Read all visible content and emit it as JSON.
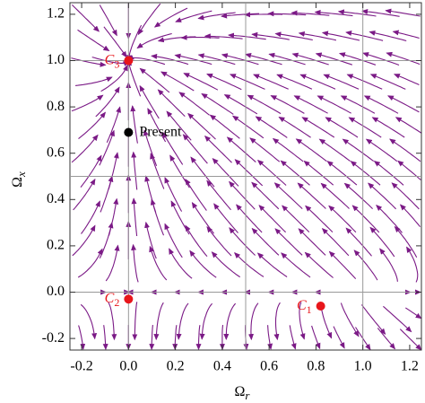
{
  "chart_data": {
    "type": "streamplot",
    "x_label": {
      "text": "Ω",
      "sub": "r"
    },
    "y_label": {
      "text": "Ω",
      "sub": "x"
    },
    "xlim": [
      -0.25,
      1.25
    ],
    "ylim": [
      -0.25,
      1.25
    ],
    "xticks": [
      -0.2,
      {
        "value": 0,
        "label": "0.0"
      },
      0.2,
      0.4,
      0.6,
      0.8,
      {
        "value": 1,
        "label": "1.0"
      },
      1.2
    ],
    "yticks": [
      -0.2,
      {
        "value": 0,
        "label": "0.0"
      },
      0.2,
      0.4,
      0.6,
      0.8,
      {
        "value": 1,
        "label": "1.0"
      },
      1.2
    ],
    "grid_x": [
      0,
      0.5,
      1
    ],
    "grid_y": [
      0,
      0.5,
      1
    ],
    "stream_color": "#7b1a86",
    "points": [
      {
        "label": "C",
        "sub": "1",
        "x": 0.82,
        "y": -0.06,
        "color": "#e8161b"
      },
      {
        "label": "C",
        "sub": "2",
        "x": 0,
        "y": -0.03,
        "color": "#e8161b"
      },
      {
        "label": "C",
        "sub": "3",
        "x": 0,
        "y": 1.0,
        "color": "#e8161b"
      },
      {
        "label": "Present",
        "x": 0,
        "y": 0.69,
        "color": "#000000"
      }
    ]
  }
}
